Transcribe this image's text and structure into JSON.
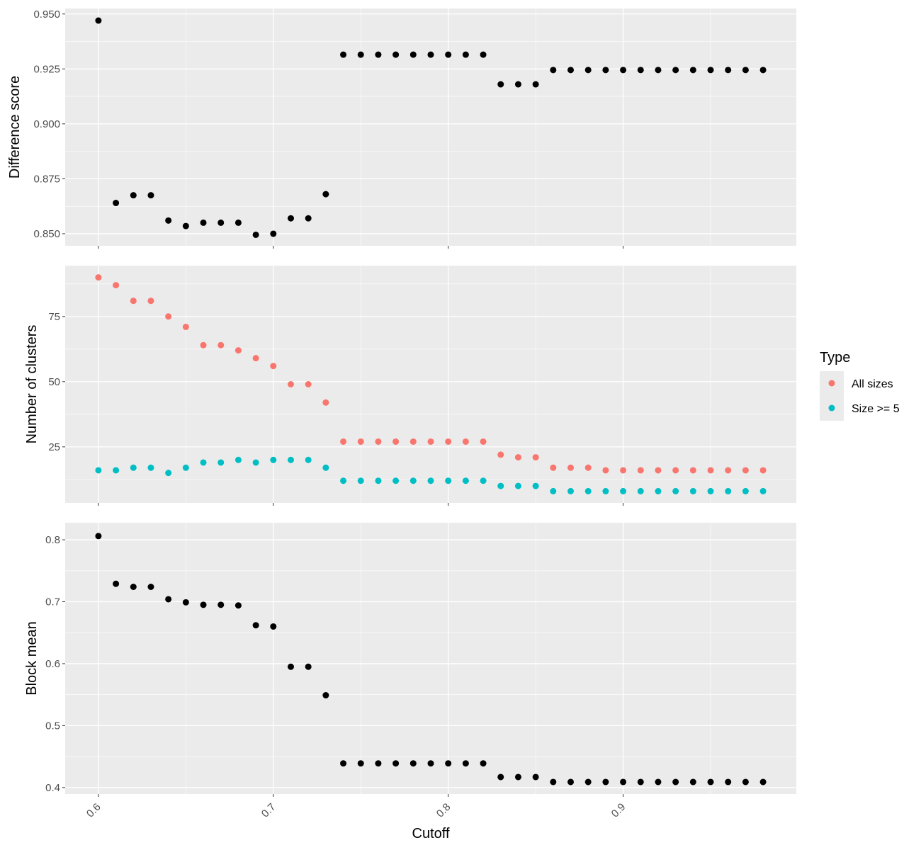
{
  "chart_data": {
    "type": "scatter",
    "x_label": "Cutoff",
    "x_range": [
      0.581,
      0.999
    ],
    "x_ticks": [
      0.6,
      0.7,
      0.8,
      0.9
    ],
    "x_tick_labels": [
      "0.6",
      "0.7",
      "0.8",
      "0.9"
    ],
    "x": [
      0.6,
      0.61,
      0.62,
      0.63,
      0.64,
      0.65,
      0.66,
      0.67,
      0.68,
      0.69,
      0.7,
      0.71,
      0.72,
      0.73,
      0.74,
      0.75,
      0.76,
      0.77,
      0.78,
      0.79,
      0.8,
      0.81,
      0.82,
      0.83,
      0.84,
      0.85,
      0.86,
      0.87,
      0.88,
      0.89,
      0.9,
      0.91,
      0.92,
      0.93,
      0.94,
      0.95,
      0.96,
      0.97,
      0.98
    ],
    "colors": {
      "panel_bg": "#ebebeb",
      "grid": "#ffffff",
      "tick": "#333333",
      "single": "#000000",
      "all_sizes": "#F8766D",
      "size5": "#00BFC4"
    },
    "legend": {
      "title": "Type",
      "position": "right",
      "entries": [
        "All sizes",
        "Size >= 5"
      ]
    },
    "panels": [
      {
        "ylabel": "Difference score",
        "y_range": [
          0.8445,
          0.9525
        ],
        "y_ticks": [
          0.85,
          0.875,
          0.9,
          0.925,
          0.95
        ],
        "y_tick_labels": [
          "0.850",
          "0.875",
          "0.900",
          "0.925",
          "0.950"
        ],
        "series": [
          {
            "color": "#000000",
            "values": [
              0.947,
              0.864,
              0.8675,
              0.8675,
              0.856,
              0.8535,
              0.855,
              0.855,
              0.855,
              0.8495,
              0.85,
              0.857,
              0.857,
              0.868,
              0.9315,
              0.9315,
              0.9315,
              0.9315,
              0.9315,
              0.9315,
              0.9315,
              0.9315,
              0.9315,
              0.918,
              0.918,
              0.918,
              0.9245,
              0.9245,
              0.9245,
              0.9245,
              0.9245,
              0.9245,
              0.9245,
              0.9245,
              0.9245,
              0.9245,
              0.9245,
              0.9245,
              0.9245
            ]
          }
        ]
      },
      {
        "ylabel": "Number of clusters",
        "y_range": [
          3.5,
          94.5
        ],
        "y_ticks": [
          25,
          50,
          75
        ],
        "y_tick_labels": [
          "25",
          "50",
          "75"
        ],
        "series": [
          {
            "name": "All sizes",
            "color": "#F8766D",
            "values": [
              90,
              87,
              81,
              81,
              75,
              71,
              64,
              64,
              62,
              59,
              56,
              49,
              49,
              42,
              27,
              27,
              27,
              27,
              27,
              27,
              27,
              27,
              27,
              22,
              21,
              21,
              17,
              17,
              17,
              16,
              16,
              16,
              16,
              16,
              16,
              16,
              16,
              16,
              16
            ]
          },
          {
            "name": "Size >= 5",
            "color": "#00BFC4",
            "values": [
              16,
              16,
              17,
              17,
              15,
              17,
              19,
              19,
              20,
              19,
              20,
              20,
              20,
              17,
              12,
              12,
              12,
              12,
              12,
              12,
              12,
              12,
              12,
              10,
              10,
              10,
              8,
              8,
              8,
              8,
              8,
              8,
              8,
              8,
              8,
              8,
              8,
              8,
              8
            ]
          }
        ]
      },
      {
        "ylabel": "Block mean",
        "y_range": [
          0.3895,
          0.8275
        ],
        "y_ticks": [
          0.4,
          0.5,
          0.6,
          0.7,
          0.8
        ],
        "y_tick_labels": [
          "0.4",
          "0.5",
          "0.6",
          "0.7",
          "0.8"
        ],
        "series": [
          {
            "color": "#000000",
            "values": [
              0.806,
              0.729,
              0.724,
              0.724,
              0.704,
              0.699,
              0.695,
              0.695,
              0.694,
              0.662,
              0.66,
              0.595,
              0.595,
              0.549,
              0.439,
              0.439,
              0.439,
              0.439,
              0.439,
              0.439,
              0.439,
              0.439,
              0.439,
              0.417,
              0.417,
              0.417,
              0.409,
              0.409,
              0.409,
              0.409,
              0.409,
              0.409,
              0.409,
              0.409,
              0.409,
              0.409,
              0.409,
              0.409,
              0.409
            ]
          }
        ]
      }
    ]
  }
}
